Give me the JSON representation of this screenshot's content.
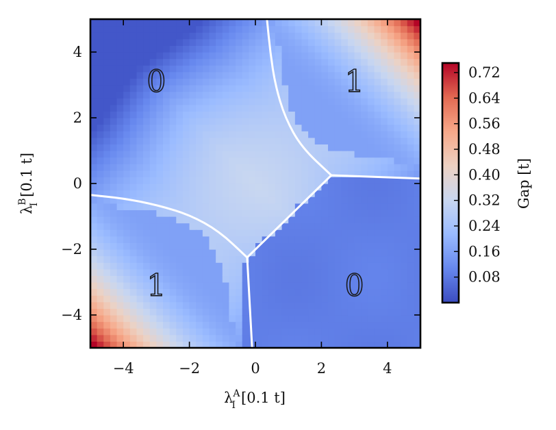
{
  "chart_data": {
    "type": "heatmap",
    "title": "",
    "x_range": [
      -5,
      5
    ],
    "y_range": [
      -5,
      5
    ],
    "xticks": [
      -4,
      -2,
      0,
      2,
      4
    ],
    "yticks": [
      -4,
      -2,
      0,
      2,
      4
    ],
    "xtick_labels": [
      "−4",
      "−2",
      "0",
      "2",
      "4"
    ],
    "ytick_labels": [
      "−4",
      "−2",
      "0",
      "2",
      "4"
    ],
    "xlabel": {
      "main": "λ",
      "sup": "A",
      "sub": "I",
      "unit": "[0.1 t]"
    },
    "ylabel": {
      "main": "λ",
      "sup": "B",
      "sub": "I",
      "unit": "[0.1 t]"
    },
    "colorbar": {
      "label": "Gap [t]",
      "range": [
        0.0,
        0.75
      ],
      "ticks": [
        0.08,
        0.16,
        0.24,
        0.32,
        0.4,
        0.48,
        0.56,
        0.64,
        0.72
      ],
      "tick_labels": [
        "0.08",
        "0.16",
        "0.24",
        "0.32",
        "0.40",
        "0.48",
        "0.56",
        "0.64",
        "0.72"
      ],
      "colormap": "coolwarm",
      "colors": [
        "#3b4cc0",
        "#6788ee",
        "#9abbff",
        "#c9d7f0",
        "#edd1c2",
        "#f7a889",
        "#e26952",
        "#b40426"
      ]
    },
    "grid_resolution": 50,
    "phase_boundaries": {
      "triple_points": [
        [
          2.3,
          0.25
        ],
        [
          -0.25,
          -2.25
        ]
      ],
      "segments": [
        {
          "from": [
            2.3,
            0.25
          ],
          "to": [
            5.0,
            0.15
          ]
        },
        {
          "from": [
            -0.25,
            -2.25
          ],
          "to": [
            -0.1,
            -5.0
          ]
        },
        {
          "from": [
            2.3,
            0.25
          ],
          "to": [
            -0.25,
            -2.25
          ]
        }
      ],
      "curves": [
        {
          "points": [
            [
              2.3,
              0.25
            ],
            [
              1.4,
              1.1
            ],
            [
              0.9,
              2.0
            ],
            [
              0.6,
              3.0
            ],
            [
              0.45,
              4.0
            ],
            [
              0.35,
              5.0
            ]
          ]
        },
        {
          "points": [
            [
              -0.25,
              -2.25
            ],
            [
              -1.1,
              -1.45
            ],
            [
              -2.0,
              -0.95
            ],
            [
              -3.0,
              -0.65
            ],
            [
              -4.0,
              -0.45
            ],
            [
              -5.0,
              -0.35
            ]
          ]
        }
      ],
      "color": "#ffffff"
    },
    "regions": [
      {
        "label": "𝟘",
        "text": "0",
        "x": -3.0,
        "y": 3.1
      },
      {
        "label": "𝟙",
        "text": "1",
        "x": 3.0,
        "y": 3.1
      },
      {
        "label": "𝟙",
        "text": "1",
        "x": -3.0,
        "y": -3.1
      },
      {
        "label": "𝟘",
        "text": "0",
        "x": 3.0,
        "y": -3.1
      }
    ]
  }
}
